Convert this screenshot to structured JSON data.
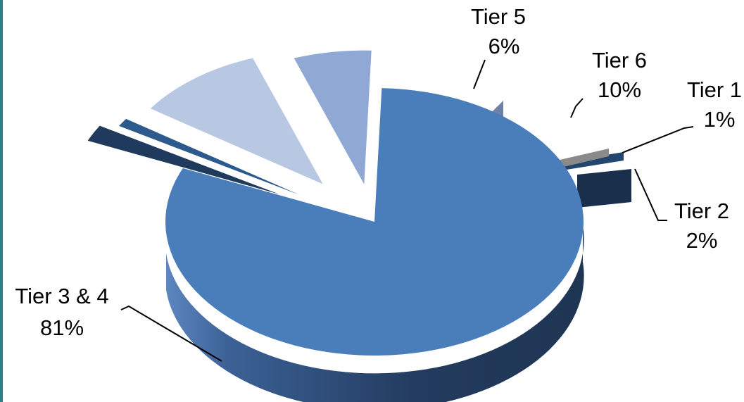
{
  "chart_data": {
    "type": "pie",
    "variant": "3d-exploded",
    "title": "",
    "slices": [
      {
        "label": "Tier 1",
        "value": 1,
        "value_label": "1%",
        "color": "#2c5a8c"
      },
      {
        "label": "Tier 2",
        "value": 2,
        "value_label": "2%",
        "color": "#1f3a5c"
      },
      {
        "label": "Tier 3 & 4",
        "value": 81,
        "value_label": "81%",
        "color": "#4a7ebb"
      },
      {
        "label": "Tier 5",
        "value": 6,
        "value_label": "6%",
        "color": "#8fa9d4"
      },
      {
        "label": "Tier 6",
        "value": 10,
        "value_label": "10%",
        "color": "#b9c8e2"
      }
    ],
    "legend": "none",
    "data_labels": "outside-with-leader-lines"
  }
}
